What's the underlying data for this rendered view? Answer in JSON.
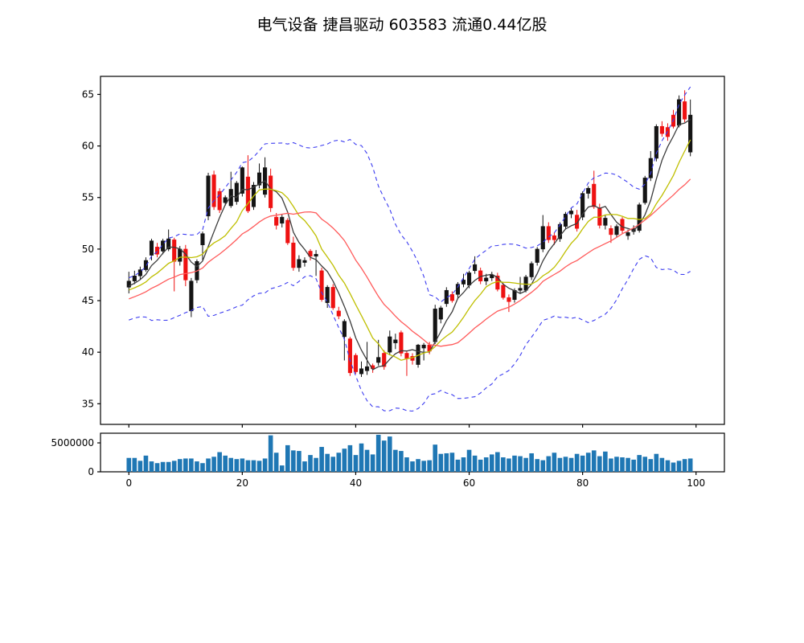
{
  "title": "电气设备 捷昌驱动 603583 流通0.44亿股",
  "chart_data": {
    "type": "candlestick",
    "title": "电气设备 捷昌驱动 603583 流通0.44亿股",
    "panels": [
      "price",
      "volume"
    ],
    "x_ticks": [
      0,
      20,
      40,
      60,
      80,
      100
    ],
    "price_ticks": [
      35,
      40,
      45,
      50,
      55,
      60,
      65
    ],
    "volume_ticks": [
      0,
      5000000
    ],
    "xlim": [
      -5,
      105
    ],
    "price_ylim": [
      33.0,
      66.75
    ],
    "volume_ylim": [
      0,
      6670000
    ],
    "grid": false,
    "legend": "none",
    "colors": {
      "up_candle": "#141414",
      "down_candle": "#ee1111",
      "ma5": "#3c3c3c",
      "ma10": "#bfbf00",
      "ma20": "#ff5a5a",
      "bollinger": "#3c3cf0",
      "volume_bar": "#1f77b4",
      "spine": "#000000",
      "background": "#ffffff"
    },
    "indicators": {
      "ma_windows": [
        5,
        10,
        20
      ],
      "bollinger_window": 20,
      "bollinger_k": 2,
      "prehistory_closes": [
        43.2,
        43.5,
        43.8,
        44.0,
        44.3,
        44.5,
        44.7,
        44.9,
        45.0,
        45.1,
        45.3,
        45.5,
        45.7,
        45.8,
        45.9,
        46.1,
        46.2,
        46.4,
        46.5
      ]
    },
    "ohlc": [
      [
        46.3,
        47.8,
        45.7,
        46.9
      ],
      [
        46.9,
        47.9,
        46.6,
        47.4
      ],
      [
        47.4,
        48.3,
        47.0,
        48.0
      ],
      [
        48.0,
        49.2,
        47.8,
        48.9
      ],
      [
        49.4,
        51.0,
        48.9,
        50.8
      ],
      [
        50.2,
        50.6,
        49.2,
        49.5
      ],
      [
        49.8,
        51.0,
        49.5,
        50.8
      ],
      [
        50.0,
        51.9,
        49.8,
        51.0
      ],
      [
        50.9,
        51.1,
        45.9,
        48.8
      ],
      [
        48.8,
        50.3,
        48.4,
        50.0
      ],
      [
        50.0,
        50.4,
        46.4,
        47.0
      ],
      [
        44.0,
        47.2,
        43.4,
        46.9
      ],
      [
        47.0,
        49.0,
        46.7,
        48.8
      ],
      [
        50.4,
        51.7,
        48.9,
        51.5
      ],
      [
        53.2,
        57.4,
        52.8,
        57.1
      ],
      [
        57.2,
        57.6,
        53.8,
        54.1
      ],
      [
        55.6,
        55.9,
        53.5,
        53.8
      ],
      [
        54.5,
        55.2,
        54.2,
        55.0
      ],
      [
        54.2,
        57.5,
        54.0,
        55.8
      ],
      [
        54.6,
        56.6,
        54.3,
        56.4
      ],
      [
        55.4,
        58.0,
        55.1,
        57.9
      ],
      [
        57.0,
        59.1,
        53.5,
        53.7
      ],
      [
        54.1,
        56.5,
        53.8,
        56.2
      ],
      [
        56.2,
        58.3,
        55.9,
        57.4
      ],
      [
        55.3,
        58.9,
        55.0,
        57.9
      ],
      [
        57.1,
        57.8,
        53.6,
        54.0
      ],
      [
        53.1,
        53.5,
        51.9,
        52.3
      ],
      [
        52.5,
        53.4,
        52.1,
        53.1
      ],
      [
        52.8,
        53.0,
        50.4,
        50.6
      ],
      [
        50.6,
        51.2,
        47.9,
        48.2
      ],
      [
        48.2,
        49.4,
        47.8,
        49.0
      ],
      [
        48.7,
        49.2,
        48.3,
        48.9
      ],
      [
        49.8,
        50.0,
        48.9,
        49.3
      ],
      [
        49.3,
        49.9,
        47.4,
        49.5
      ],
      [
        47.9,
        48.2,
        44.9,
        45.1
      ],
      [
        44.8,
        46.5,
        44.3,
        46.3
      ],
      [
        46.3,
        46.6,
        44.1,
        44.3
      ],
      [
        44.0,
        44.4,
        43.2,
        43.5
      ],
      [
        41.5,
        43.2,
        39.2,
        43.0
      ],
      [
        41.3,
        41.5,
        37.7,
        38.0
      ],
      [
        39.7,
        39.9,
        37.9,
        38.1
      ],
      [
        37.9,
        39.1,
        37.6,
        38.4
      ],
      [
        38.2,
        41.0,
        37.8,
        38.6
      ],
      [
        38.7,
        38.9,
        38.0,
        38.4
      ],
      [
        39.0,
        41.2,
        38.7,
        39.5
      ],
      [
        39.9,
        40.2,
        38.3,
        38.6
      ],
      [
        40.0,
        42.1,
        39.7,
        41.5
      ],
      [
        40.9,
        41.8,
        40.3,
        41.2
      ],
      [
        41.9,
        42.1,
        39.6,
        39.9
      ],
      [
        39.9,
        40.1,
        37.7,
        39.4
      ],
      [
        39.6,
        39.9,
        38.8,
        39.2
      ],
      [
        38.8,
        40.8,
        38.5,
        40.7
      ],
      [
        40.4,
        40.9,
        39.2,
        40.7
      ],
      [
        40.7,
        41.0,
        39.8,
        40.1
      ],
      [
        41.0,
        44.6,
        40.8,
        44.2
      ],
      [
        43.2,
        44.5,
        42.8,
        44.3
      ],
      [
        44.7,
        46.3,
        44.4,
        46.0
      ],
      [
        45.6,
        45.9,
        44.8,
        45.0
      ],
      [
        45.6,
        46.8,
        45.2,
        46.6
      ],
      [
        46.6,
        47.6,
        46.3,
        47.0
      ],
      [
        46.5,
        47.9,
        46.2,
        47.7
      ],
      [
        47.9,
        49.3,
        47.6,
        48.5
      ],
      [
        47.9,
        48.2,
        46.6,
        46.9
      ],
      [
        46.9,
        47.6,
        46.5,
        47.2
      ],
      [
        47.2,
        47.8,
        46.9,
        47.5
      ],
      [
        47.4,
        47.7,
        45.9,
        46.1
      ],
      [
        46.5,
        46.7,
        45.1,
        45.3
      ],
      [
        45.3,
        45.6,
        43.9,
        44.9
      ],
      [
        45.1,
        46.2,
        44.8,
        46.0
      ],
      [
        46.0,
        47.3,
        45.7,
        46.2
      ],
      [
        46.0,
        47.5,
        45.8,
        47.3
      ],
      [
        47.3,
        48.8,
        47.0,
        48.6
      ],
      [
        48.7,
        50.2,
        48.4,
        50.0
      ],
      [
        50.0,
        53.3,
        49.7,
        52.2
      ],
      [
        52.2,
        52.6,
        50.6,
        50.9
      ],
      [
        51.3,
        51.6,
        50.4,
        50.9
      ],
      [
        51.0,
        52.6,
        50.7,
        52.4
      ],
      [
        52.2,
        53.6,
        51.9,
        53.4
      ],
      [
        53.4,
        54.0,
        53.0,
        53.7
      ],
      [
        53.3,
        53.8,
        51.7,
        52.0
      ],
      [
        53.1,
        55.6,
        52.8,
        55.4
      ],
      [
        55.4,
        56.1,
        54.9,
        55.9
      ],
      [
        56.3,
        57.6,
        53.9,
        54.1
      ],
      [
        54.0,
        54.4,
        52.0,
        52.3
      ],
      [
        52.3,
        53.3,
        51.9,
        53.0
      ],
      [
        52.0,
        52.3,
        50.6,
        51.4
      ],
      [
        51.4,
        52.4,
        51.1,
        52.2
      ],
      [
        52.9,
        53.1,
        51.5,
        51.8
      ],
      [
        51.3,
        51.9,
        50.9,
        51.6
      ],
      [
        51.7,
        52.3,
        51.4,
        52.0
      ],
      [
        51.8,
        54.5,
        51.6,
        54.3
      ],
      [
        54.5,
        57.1,
        54.3,
        56.9
      ],
      [
        56.9,
        59.5,
        56.6,
        58.8
      ],
      [
        58.8,
        62.1,
        58.5,
        61.9
      ],
      [
        61.9,
        62.4,
        60.9,
        61.2
      ],
      [
        61.8,
        62.2,
        60.5,
        60.9
      ],
      [
        63.0,
        63.5,
        61.7,
        61.9
      ],
      [
        62.0,
        64.9,
        61.8,
        64.5
      ],
      [
        64.3,
        65.4,
        62.3,
        62.6
      ],
      [
        59.4,
        64.5,
        59.0,
        63.0
      ]
    ],
    "volume": [
      2400000,
      2400000,
      1900000,
      2800000,
      1800000,
      1500000,
      1700000,
      1700000,
      1900000,
      2200000,
      2300000,
      2300000,
      1800000,
      1500000,
      2300000,
      2600000,
      3400000,
      2800000,
      2400000,
      2200000,
      2300000,
      2000000,
      2000000,
      1900000,
      2300000,
      6300000,
      3300000,
      1100000,
      4600000,
      3700000,
      3600000,
      1800000,
      2900000,
      2400000,
      4300000,
      3100000,
      2600000,
      3300000,
      4000000,
      4600000,
      2900000,
      4900000,
      3800000,
      3000000,
      6400000,
      5400000,
      6100000,
      3800000,
      3600000,
      2500000,
      1800000,
      2200000,
      1900000,
      2000000,
      4700000,
      3100000,
      3200000,
      3300000,
      2100000,
      2500000,
      3800000,
      2800000,
      2100000,
      2500000,
      3000000,
      3400000,
      2500000,
      2300000,
      2800000,
      2700000,
      2400000,
      3200000,
      2200000,
      2000000,
      2700000,
      3300000,
      2400000,
      2600000,
      2400000,
      3100000,
      2800000,
      3300000,
      3700000,
      2700000,
      3500000,
      2300000,
      2600000,
      2500000,
      2400000,
      2100000,
      2900000,
      2600000,
      2200000,
      3100000,
      2400000,
      2000000,
      1600000,
      1900000,
      2200000,
      2300000
    ]
  }
}
